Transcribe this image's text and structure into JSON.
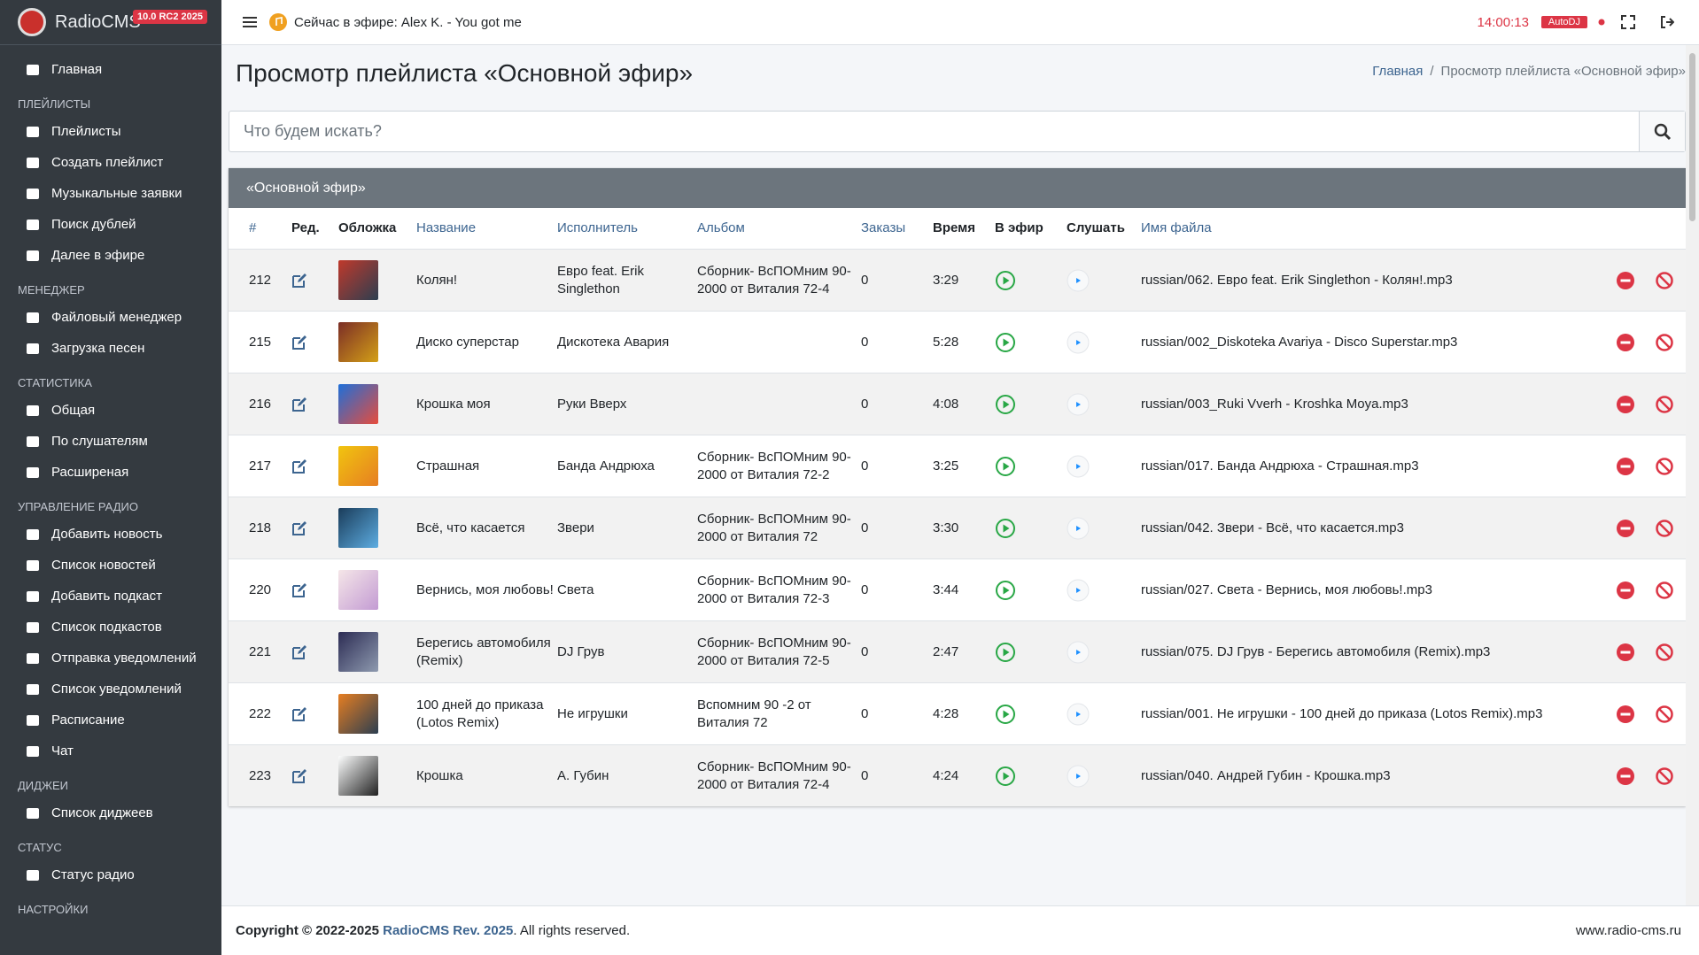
{
  "sidebar": {
    "brand": "RadioCMS",
    "version": "10.0 RC2 2025",
    "home": "Главная",
    "sections": [
      {
        "title": "ПЛЕЙЛИСТЫ",
        "items": [
          "Плейлисты",
          "Создать плейлист",
          "Музыкальные заявки",
          "Поиск дублей",
          "Далее в эфире"
        ]
      },
      {
        "title": "МЕНЕДЖЕР",
        "items": [
          "Файловый менеджер",
          "Загрузка песен"
        ]
      },
      {
        "title": "СТАТИСТИКА",
        "items": [
          "Общая",
          "По слушателям",
          "Расширеная"
        ]
      },
      {
        "title": "УПРАВЛЕНИЕ РАДИО",
        "items": [
          "Добавить новость",
          "Список новостей",
          "Добавить подкаст",
          "Список подкастов",
          "Отправка уведомлений",
          "Список уведомлений",
          "Расписание",
          "Чат"
        ]
      },
      {
        "title": "ДИДЖЕИ",
        "items": [
          "Список диджеев"
        ]
      },
      {
        "title": "СТАТУС",
        "items": [
          "Статус радио"
        ]
      },
      {
        "title": "НАСТРОЙКИ",
        "items": []
      }
    ]
  },
  "topbar": {
    "now_playing": "Сейчас в эфире: Alex K. - You got me",
    "time": "14:00:13",
    "autodj": "AutoDJ"
  },
  "header": {
    "title": "Просмотр плейлиста «Основной эфир»",
    "breadcrumb": [
      "Главная",
      "/",
      "Просмотр плейлиста «Основной эфир»"
    ]
  },
  "search": {
    "placeholder": "Что будем искать?"
  },
  "table": {
    "title": "«Основной эфир»",
    "headers": [
      "#",
      "Ред.",
      "Обложка",
      "Название",
      "Исполнитель",
      "Альбом",
      "Заказы",
      "Время",
      "В эфир",
      "Слушать",
      "Имя файла"
    ],
    "rows": [
      [
        212,
        "Колян!",
        "Евро feat. Erik Singlethon",
        "Сборник- ВсПОМним 90-2000 от Виталия 72-4",
        0,
        "3:29",
        "russian/062. Евро feat. Erik Singlethon - Колян!.mp3"
      ],
      [
        215,
        "Диско суперстар",
        "Дискотека Авария",
        null,
        0,
        "5:28",
        "russian/002_Diskoteka Avariya - Disco Superstar.mp3"
      ],
      [
        216,
        "Крошка моя",
        "Руки Вверх",
        null,
        0,
        "4:08",
        "russian/003_Ruki Vverh - Kroshka Moya.mp3"
      ],
      [
        217,
        "Страшная",
        "Банда Андрюха",
        "Сборник- ВсПОМним 90- 2000 от Виталия 72-2",
        0,
        "3:25",
        "russian/017. Банда Андрюха - Страшная.mp3"
      ],
      [
        218,
        "Всё, что касается",
        "Звери",
        "Сборник- ВсПОМним 90- 2000 от Виталия 72",
        0,
        "3:30",
        "russian/042. Звери - Всё, что касается.mp3"
      ],
      [
        220,
        "Вернись, моя любовь!",
        "Света",
        "Сборник- ВсПОМним 90-2000 от Виталия 72-3",
        0,
        "3:44",
        "russian/027. Света - Вернись, моя любовь!.mp3"
      ],
      [
        221,
        "Берегись автомобиля (Remix)",
        "DJ Грув",
        "Сборник- ВсПОМним 90-2000 от Виталия 72-5",
        0,
        "2:47",
        "russian/075. DJ Грув - Берегись автомобиля (Remix).mp3"
      ],
      [
        222,
        "100 дней до приказа (Lotos Remix)",
        "Не игрушки",
        "Вспомним 90 -2 от Виталия 72",
        0,
        "4:28",
        "russian/001. Не игрушки - 100 дней до приказа (Lotos Remix).mp3"
      ],
      [
        223,
        "Крошка",
        "А. Губин",
        "Сборник- ВсПОМним 90-2000 от Виталия 72-4",
        0,
        "4:24",
        "russian/040. Андрей Губин - Крошка.mp3"
      ]
    ]
  },
  "footer": {
    "copyright": "Copyright © 2022-2025",
    "link": "RadioCMS Rev. 2025",
    "rights": ". All rights reserved.",
    "site": "www.radio-cms.ru"
  }
}
